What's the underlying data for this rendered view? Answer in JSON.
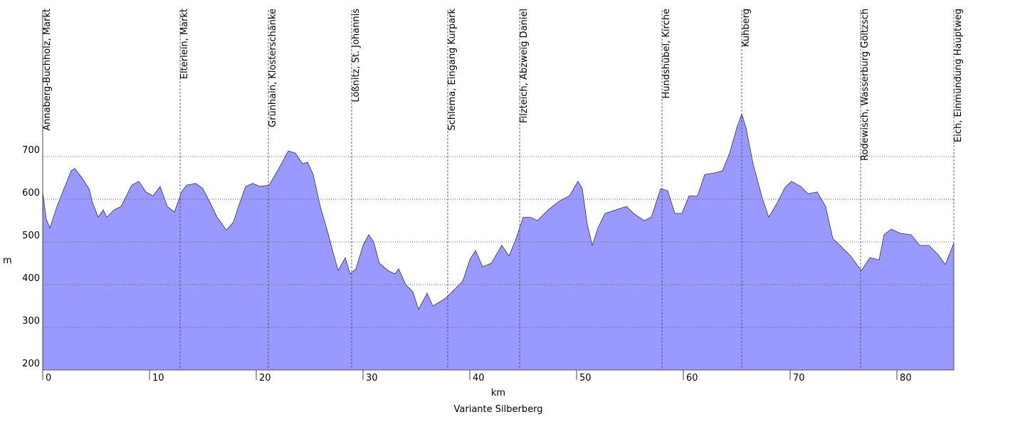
{
  "chart_data": {
    "type": "area",
    "subtitle": "Variante Silberberg",
    "x_label": "km",
    "y_label": "m",
    "color": "#9999ff",
    "x": [
      0,
      0.33,
      0.67,
      1,
      1.33,
      2,
      2.67,
      3,
      3.67,
      4.33,
      4.67,
      5.2,
      5.67,
      6,
      6.67,
      7.33,
      8.33,
      9,
      9.67,
      10.33,
      11,
      11.67,
      12.33,
      13,
      13.47,
      14.33,
      15,
      15.67,
      16.33,
      17.2,
      17.87,
      18.33,
      19,
      19.67,
      20.33,
      21.2,
      22,
      23,
      23.67,
      24.33,
      24.8,
      25.33,
      26,
      26.67,
      27.2,
      27.67,
      28.33,
      28.8,
      29.33,
      30,
      30.53,
      31,
      31.53,
      32.33,
      33,
      33.33,
      34,
      34.67,
      35.2,
      36,
      36.53,
      37.67,
      38.33,
      39.33,
      40,
      40.53,
      41.2,
      42,
      43,
      43.67,
      44.33,
      45,
      45.67,
      46.33,
      47.33,
      48.33,
      49.33,
      50.13,
      50.53,
      51,
      51.47,
      52,
      52.67,
      53.67,
      54.67,
      55.33,
      56.33,
      57,
      57.87,
      58.53,
      59.2,
      59.87,
      60.53,
      61.33,
      62,
      63,
      63.67,
      64.33,
      65,
      65.47,
      65.87,
      66.53,
      67.33,
      68,
      68.8,
      69.53,
      70.13,
      71,
      71.67,
      72.53,
      73.33,
      74,
      74.67,
      75.67,
      76.67,
      77.47,
      78.33,
      78.8,
      79.47,
      80.33,
      81.33,
      82.13,
      83,
      83.87,
      84.53,
      85.33
    ],
    "values": [
      617,
      553,
      533,
      558,
      583,
      625,
      667,
      672,
      650,
      625,
      592,
      558,
      575,
      558,
      575,
      583,
      633,
      642,
      617,
      608,
      630,
      583,
      570,
      617,
      633,
      637,
      625,
      592,
      558,
      528,
      547,
      583,
      630,
      637,
      630,
      633,
      667,
      713,
      708,
      683,
      687,
      658,
      583,
      525,
      475,
      433,
      463,
      425,
      437,
      492,
      517,
      500,
      450,
      433,
      425,
      437,
      400,
      383,
      342,
      380,
      350,
      367,
      383,
      408,
      458,
      480,
      442,
      450,
      492,
      467,
      508,
      558,
      558,
      550,
      575,
      595,
      608,
      642,
      625,
      542,
      492,
      533,
      567,
      575,
      583,
      567,
      550,
      558,
      625,
      620,
      567,
      567,
      608,
      608,
      658,
      662,
      667,
      708,
      767,
      800,
      767,
      683,
      608,
      558,
      592,
      628,
      642,
      630,
      613,
      617,
      583,
      508,
      492,
      467,
      433,
      463,
      458,
      517,
      530,
      520,
      517,
      492,
      492,
      470,
      447,
      497
    ],
    "xlim": [
      0,
      85.33
    ],
    "ylim": [
      200,
      1040
    ],
    "xticks": [
      0,
      10,
      20,
      30,
      40,
      50,
      60,
      70,
      80
    ],
    "yticks": [
      200,
      300,
      400,
      500,
      600,
      700
    ],
    "grid": true,
    "annotations": [
      {
        "label": "Annaberg-Buchholz, Markt",
        "x": 0
      },
      {
        "label": "Elterlein, Markt",
        "x": 12.87
      },
      {
        "label": "Grünhain, Klosterschänke",
        "x": 21.13
      },
      {
        "label": "Lößnitz, St. Johannis",
        "x": 28.93
      },
      {
        "label": "Schlema, Eingang Kurpark",
        "x": 37.93
      },
      {
        "label": "Filzteich, Abzweig Daniel",
        "x": 44.67
      },
      {
        "label": "Hundshübel, Kirche",
        "x": 58
      },
      {
        "label": "Kuhberg",
        "x": 65.47
      },
      {
        "label": "Rodewisch, Wasserburg Göltzsch",
        "x": 76.6
      },
      {
        "label": "Eich, Einmündung Hauptweg",
        "x": 85.33
      }
    ]
  }
}
